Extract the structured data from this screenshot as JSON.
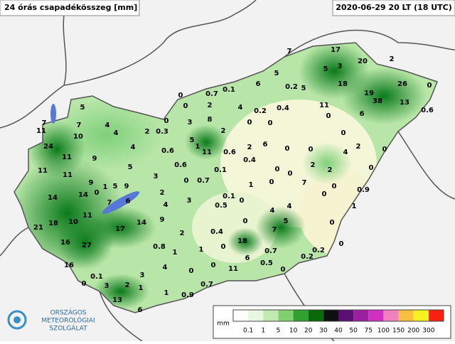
{
  "header": {
    "title": "24 órás csapadékösszeg [mm]",
    "datetime": "2020-06-29 20 LT (18 UTC)"
  },
  "logo": {
    "lines": [
      "ORSZÁGOS",
      "METEOROLÓGIAI",
      "SZOLGÁLAT"
    ]
  },
  "legend": {
    "unit": "mm",
    "labels": [
      "0.1",
      "1",
      "5",
      "10",
      "20",
      "30",
      "40",
      "50",
      "75",
      "100",
      "150",
      "200",
      "300"
    ],
    "colors": [
      "#ffffff",
      "#e8f8e0",
      "#c0eab0",
      "#80d070",
      "#30a030",
      "#0a6a0a",
      "#101010",
      "#5a1070",
      "#9a20a0",
      "#d030c0",
      "#f080c0",
      "#f8c040",
      "#f8f020",
      "#f82010"
    ]
  },
  "stations": [
    7,
    17,
    20,
    2,
    5,
    3,
    5,
    18,
    26,
    0,
    19,
    38,
    13,
    0.6,
    6,
    11,
    0,
    0.2,
    5,
    0.4,
    6,
    0.1,
    0.7,
    0,
    0,
    2,
    8,
    4,
    0.2,
    0,
    0,
    5,
    7,
    11,
    7,
    10,
    4,
    4,
    24,
    2,
    0.3,
    0,
    3,
    2,
    5,
    1,
    11,
    0.6,
    4,
    9,
    11,
    11,
    11,
    9,
    1,
    5,
    5,
    3,
    0.6,
    0.6,
    2,
    6,
    0.4,
    0.1,
    0.7,
    0,
    1,
    0,
    0,
    0,
    0,
    0,
    7,
    2,
    2,
    4,
    2,
    0,
    0,
    0,
    0.9,
    0,
    0,
    1,
    14,
    14,
    0,
    9,
    7,
    11,
    6,
    2,
    3,
    4,
    0.1,
    0.5,
    0,
    4,
    4,
    21,
    18,
    10,
    17,
    14,
    9,
    2,
    0.4,
    0,
    7,
    5,
    0,
    0,
    16,
    27,
    0.8,
    1,
    1,
    0,
    18,
    0.7,
    6,
    0.5,
    0.2,
    0.2,
    0,
    16,
    4,
    0,
    11,
    0,
    0.1,
    3,
    0,
    2,
    1,
    1,
    0.7,
    0.9,
    3,
    13,
    6
  ]
}
